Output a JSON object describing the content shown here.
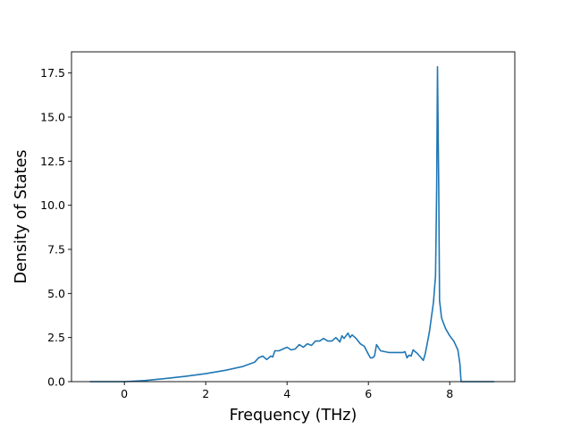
{
  "chart_data": {
    "type": "line",
    "title": "",
    "xlabel": "Frequency (THz)",
    "ylabel": "Density of States",
    "xlim": [
      -1.3,
      9.6
    ],
    "ylim": [
      0,
      18.7
    ],
    "xticks": [
      0,
      2,
      4,
      6,
      8
    ],
    "xtick_labels": [
      "0",
      "2",
      "4",
      "6",
      "8"
    ],
    "yticks": [
      0,
      2.5,
      5,
      7.5,
      10,
      12.5,
      15,
      17.5
    ],
    "ytick_labels": [
      "0.0",
      "2.5",
      "5.0",
      "7.5",
      "10.0",
      "12.5",
      "15.0",
      "17.5"
    ],
    "grid": false,
    "legend": "none",
    "line_color": "#1f77b4",
    "series": [
      {
        "x": [
          -0.85,
          -0.5,
          -0.2,
          0.0,
          0.5,
          1.0,
          1.5,
          2.0,
          2.5,
          2.9,
          3.2,
          3.3,
          3.4,
          3.5,
          3.6,
          3.65,
          3.7,
          3.8,
          3.9,
          4.0,
          4.1,
          4.2,
          4.3,
          4.4,
          4.5,
          4.6,
          4.7,
          4.8,
          4.9,
          5.0,
          5.1,
          5.2,
          5.3,
          5.35,
          5.4,
          5.5,
          5.55,
          5.6,
          5.7,
          5.8,
          5.9,
          6.0,
          6.05,
          6.1,
          6.15,
          6.2,
          6.3,
          6.5,
          6.7,
          6.85,
          6.9,
          6.95,
          7.0,
          7.05,
          7.1,
          7.2,
          7.3,
          7.35,
          7.4,
          7.5,
          7.6,
          7.65,
          7.68,
          7.7,
          7.73,
          7.75,
          7.8,
          7.9,
          8.0,
          8.1,
          8.2,
          8.25,
          8.28,
          8.35,
          8.5,
          9.1
        ],
        "y": [
          0.0,
          0.0,
          0.0,
          0.0,
          0.06,
          0.17,
          0.3,
          0.45,
          0.65,
          0.85,
          1.1,
          1.35,
          1.45,
          1.25,
          1.45,
          1.4,
          1.75,
          1.75,
          1.85,
          1.95,
          1.8,
          1.85,
          2.1,
          1.95,
          2.15,
          2.05,
          2.3,
          2.3,
          2.45,
          2.3,
          2.3,
          2.5,
          2.25,
          2.6,
          2.45,
          2.75,
          2.5,
          2.65,
          2.45,
          2.15,
          2.0,
          1.55,
          1.35,
          1.35,
          1.45,
          2.1,
          1.75,
          1.65,
          1.65,
          1.65,
          1.7,
          1.35,
          1.5,
          1.45,
          1.8,
          1.6,
          1.35,
          1.2,
          1.6,
          2.8,
          4.5,
          6.0,
          11.0,
          17.85,
          11.0,
          4.6,
          3.6,
          3.0,
          2.6,
          2.3,
          1.8,
          1.0,
          0.0,
          0.0,
          0.0,
          0.0
        ]
      }
    ]
  }
}
